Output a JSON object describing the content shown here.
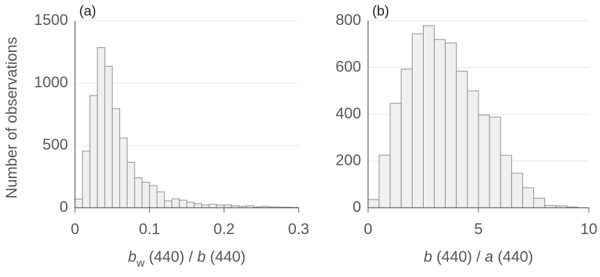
{
  "chart_data": [
    {
      "type": "histogram",
      "panel": "(a)",
      "ylabel": "Number of observations",
      "xlabel": [
        "b",
        "w",
        " (440) / ",
        "b",
        " (440)"
      ],
      "bins": [
        0,
        0.01,
        0.02,
        0.03,
        0.04,
        0.05,
        0.06,
        0.07,
        0.08,
        0.09,
        0.1,
        0.11,
        0.12,
        0.13,
        0.14,
        0.15,
        0.16,
        0.17,
        0.18,
        0.19,
        0.2,
        0.21,
        0.22,
        0.23,
        0.24,
        0.25,
        0.26,
        0.27,
        0.28,
        0.29,
        0.3
      ],
      "values": [
        70,
        455,
        900,
        1285,
        1135,
        795,
        560,
        365,
        240,
        205,
        178,
        128,
        55,
        72,
        61,
        44,
        33,
        22,
        28,
        22,
        22,
        17,
        11,
        17,
        6,
        11,
        6,
        5,
        5,
        3
      ],
      "color": "#f0f0f0",
      "xlim": [
        0,
        0.3
      ],
      "xticks": [
        0,
        0.1,
        0.2,
        0.3
      ],
      "ylim": [
        0,
        1500
      ],
      "yticks": [
        0,
        500,
        1000,
        1500
      ],
      "grid": true
    },
    {
      "type": "histogram",
      "panel": "(b)",
      "xlabel": [
        "b",
        " (440) / ",
        "a",
        " (440)"
      ],
      "bins": [
        0,
        0.5,
        1,
        1.5,
        2,
        2.5,
        3,
        3.5,
        4,
        4.5,
        5,
        5.5,
        6,
        6.5,
        7,
        7.5,
        8,
        8.5,
        9,
        9.5
      ],
      "values": [
        35,
        225,
        447,
        593,
        744,
        779,
        720,
        705,
        584,
        500,
        397,
        388,
        225,
        148,
        86,
        41,
        10,
        8,
        3
      ],
      "color": "#f0f0f0",
      "xlim": [
        0,
        10
      ],
      "xticks": [
        0,
        5,
        10
      ],
      "ylim": [
        0,
        800
      ],
      "yticks": [
        0,
        200,
        400,
        600,
        800
      ],
      "grid": true
    }
  ]
}
